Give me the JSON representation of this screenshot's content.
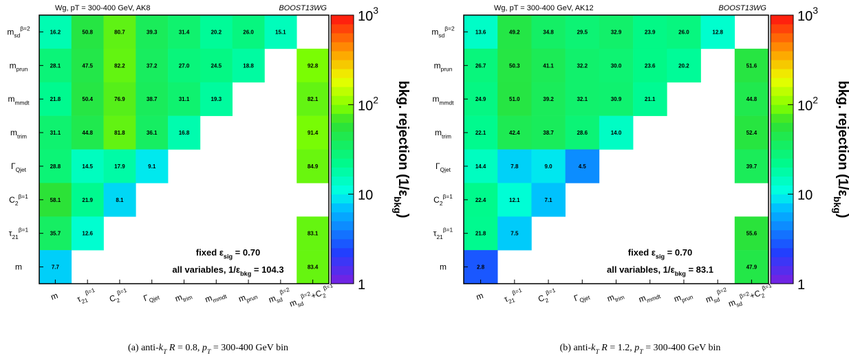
{
  "chart_data": [
    {
      "type": "heatmap",
      "title": "Wg, pT = 300-400 GeV, AK8",
      "tag": "BOOST13WG",
      "x_categories": [
        [
          {
            "text": "m"
          }
        ],
        [
          {
            "text": "τ"
          },
          {
            "text": "21",
            "sub": true
          },
          {
            "text": "β=1",
            "sup": true
          }
        ],
        [
          {
            "text": "C"
          },
          {
            "text": "2",
            "sub": true
          },
          {
            "text": "β=1",
            "sup": true
          }
        ],
        [
          {
            "text": "Γ"
          },
          {
            "text": "Qjet",
            "sub": true
          }
        ],
        [
          {
            "text": "m"
          },
          {
            "text": "trim",
            "sub": true
          }
        ],
        [
          {
            "text": "m"
          },
          {
            "text": "mmdt",
            "sub": true
          }
        ],
        [
          {
            "text": "m"
          },
          {
            "text": "prun",
            "sub": true
          }
        ],
        [
          {
            "text": "m"
          },
          {
            "text": "sd",
            "sub": true
          },
          {
            "text": "β=2",
            "sup": true
          }
        ],
        [
          {
            "text": "m"
          },
          {
            "text": "sd",
            "sub": true
          },
          {
            "text": "β=2",
            "sup": true
          },
          {
            "text": "+C"
          },
          {
            "text": "2",
            "sub": true
          },
          {
            "text": "β=1",
            "sup": true
          }
        ]
      ],
      "y_categories": [
        [
          {
            "text": "m"
          },
          {
            "text": "sd",
            "sub": true
          },
          {
            "text": "β=2",
            "sup": true
          }
        ],
        [
          {
            "text": "m"
          },
          {
            "text": "prun",
            "sub": true
          }
        ],
        [
          {
            "text": "m"
          },
          {
            "text": "mmdt",
            "sub": true
          }
        ],
        [
          {
            "text": "m"
          },
          {
            "text": "trim",
            "sub": true
          }
        ],
        [
          {
            "text": "Γ"
          },
          {
            "text": "Qjet",
            "sub": true
          }
        ],
        [
          {
            "text": "C"
          },
          {
            "text": "2",
            "sub": true
          },
          {
            "text": "β=1",
            "sup": true
          }
        ],
        [
          {
            "text": "τ"
          },
          {
            "text": "21",
            "sub": true
          },
          {
            "text": "β=1",
            "sup": true
          }
        ],
        [
          {
            "text": "m"
          }
        ]
      ],
      "values": [
        [
          16.2,
          50.8,
          80.7,
          39.3,
          31.4,
          20.2,
          26.0,
          15.1,
          null
        ],
        [
          28.1,
          47.5,
          82.2,
          37.2,
          27.0,
          24.5,
          18.8,
          null,
          92.8
        ],
        [
          21.8,
          50.4,
          76.9,
          38.7,
          31.1,
          19.3,
          null,
          null,
          82.1
        ],
        [
          31.1,
          44.8,
          81.8,
          36.1,
          16.8,
          null,
          null,
          null,
          91.4
        ],
        [
          28.8,
          14.5,
          17.9,
          9.1,
          null,
          null,
          null,
          null,
          84.9
        ],
        [
          58.1,
          21.9,
          8.1,
          null,
          null,
          null,
          null,
          null,
          null
        ],
        [
          35.7,
          12.6,
          null,
          null,
          null,
          null,
          null,
          null,
          83.1
        ],
        [
          7.7,
          null,
          null,
          null,
          null,
          null,
          null,
          null,
          83.4
        ]
      ],
      "value_labels": [
        [
          "16.2",
          "50.8",
          "80.7",
          "39.3",
          "31.4",
          "20.2",
          "26.0",
          "15.1",
          null
        ],
        [
          "28.1",
          "47.5",
          "82.2",
          "37.2",
          "27.0",
          "24.5",
          "18.8",
          null,
          "92.8"
        ],
        [
          "21.8",
          "50.4",
          "76.9",
          "38.7",
          "31.1",
          "19.3",
          null,
          null,
          "82.1"
        ],
        [
          "31.1",
          "44.8",
          "81.8",
          "36.1",
          "16.8",
          null,
          null,
          null,
          "91.4"
        ],
        [
          "28.8",
          "14.5",
          "17.9",
          "9.1",
          null,
          null,
          null,
          null,
          "84.9"
        ],
        [
          "58.1",
          "21.9",
          "8.1",
          null,
          null,
          null,
          null,
          null,
          null
        ],
        [
          "35.7",
          "12.6",
          null,
          null,
          null,
          null,
          null,
          null,
          "83.1"
        ],
        [
          "7.7",
          null,
          null,
          null,
          null,
          null,
          null,
          null,
          "83.4"
        ]
      ],
      "zlim": [
        1,
        1000
      ],
      "zscale": "log",
      "zticks": [
        1,
        10,
        {
          "value": 100,
          "label": [
            {
              "text": "10"
            },
            {
              "text": "2",
              "sup": true
            }
          ]
        },
        {
          "value": 1000,
          "label": [
            {
              "text": "10"
            },
            {
              "text": "3",
              "sup": true
            }
          ]
        }
      ],
      "colorbar_label": [
        {
          "text": "bkg. rejection (1/ε"
        },
        {
          "text": "bkg",
          "sub": true
        },
        {
          "text": ")"
        }
      ],
      "annotations": [
        [
          {
            "text": "fixed ε"
          },
          {
            "text": "sig",
            "sub": true
          },
          {
            "text": " = 0.70"
          }
        ],
        [
          {
            "text": "all variables, 1/ε"
          },
          {
            "text": "bkg",
            "sub": true
          },
          {
            "text": " = 104.3"
          }
        ]
      ],
      "caption": [
        {
          "text": "(a)  anti-"
        },
        {
          "text": "k",
          "italic": true
        },
        {
          "text": "T",
          "italic": true,
          "sub": true
        },
        {
          "text": " R",
          "italic": true
        },
        {
          "text": " = 0.8, "
        },
        {
          "text": "p",
          "italic": true
        },
        {
          "text": "T",
          "italic": true,
          "sub": true
        },
        {
          "text": " = 300-400 GeV bin"
        }
      ]
    },
    {
      "type": "heatmap",
      "title": "Wg, pT = 300-400 GeV, AK12",
      "tag": "BOOST13WG",
      "x_categories": [
        [
          {
            "text": "m"
          }
        ],
        [
          {
            "text": "τ"
          },
          {
            "text": "21",
            "sub": true
          },
          {
            "text": "β=1",
            "sup": true
          }
        ],
        [
          {
            "text": "C"
          },
          {
            "text": "2",
            "sub": true
          },
          {
            "text": "β=1",
            "sup": true
          }
        ],
        [
          {
            "text": "Γ"
          },
          {
            "text": "Qjet",
            "sub": true
          }
        ],
        [
          {
            "text": "m"
          },
          {
            "text": "trim",
            "sub": true
          }
        ],
        [
          {
            "text": "m"
          },
          {
            "text": "mmdt",
            "sub": true
          }
        ],
        [
          {
            "text": "m"
          },
          {
            "text": "prun",
            "sub": true
          }
        ],
        [
          {
            "text": "m"
          },
          {
            "text": "sd",
            "sub": true
          },
          {
            "text": "β=2",
            "sup": true
          }
        ],
        [
          {
            "text": "m"
          },
          {
            "text": "sd",
            "sub": true
          },
          {
            "text": "β=2",
            "sup": true
          },
          {
            "text": "+C"
          },
          {
            "text": "2",
            "sub": true
          },
          {
            "text": "β=1",
            "sup": true
          }
        ]
      ],
      "y_categories": [
        [
          {
            "text": "m"
          },
          {
            "text": "sd",
            "sub": true
          },
          {
            "text": "β=2",
            "sup": true
          }
        ],
        [
          {
            "text": "m"
          },
          {
            "text": "prun",
            "sub": true
          }
        ],
        [
          {
            "text": "m"
          },
          {
            "text": "mmdt",
            "sub": true
          }
        ],
        [
          {
            "text": "m"
          },
          {
            "text": "trim",
            "sub": true
          }
        ],
        [
          {
            "text": "Γ"
          },
          {
            "text": "Qjet",
            "sub": true
          }
        ],
        [
          {
            "text": "C"
          },
          {
            "text": "2",
            "sub": true
          },
          {
            "text": "β=1",
            "sup": true
          }
        ],
        [
          {
            "text": "τ"
          },
          {
            "text": "21",
            "sub": true
          },
          {
            "text": "β=1",
            "sup": true
          }
        ],
        [
          {
            "text": "m"
          }
        ]
      ],
      "values": [
        [
          13.6,
          49.2,
          34.8,
          29.5,
          32.9,
          23.9,
          26.0,
          12.8,
          null
        ],
        [
          26.7,
          50.3,
          41.1,
          32.2,
          30.0,
          23.6,
          20.2,
          null,
          51.6
        ],
        [
          24.9,
          51.0,
          39.2,
          32.1,
          30.9,
          21.1,
          null,
          null,
          44.8
        ],
        [
          22.1,
          42.4,
          38.7,
          28.6,
          14.0,
          null,
          null,
          null,
          52.4
        ],
        [
          14.4,
          7.8,
          9.0,
          4.5,
          null,
          null,
          null,
          null,
          39.7
        ],
        [
          22.4,
          12.1,
          7.1,
          null,
          null,
          null,
          null,
          null,
          null
        ],
        [
          21.8,
          7.5,
          null,
          null,
          null,
          null,
          null,
          null,
          55.6
        ],
        [
          2.8,
          null,
          null,
          null,
          null,
          null,
          null,
          null,
          47.9
        ]
      ],
      "value_labels": [
        [
          "13.6",
          "49.2",
          "34.8",
          "29.5",
          "32.9",
          "23.9",
          "26.0",
          "12.8",
          null
        ],
        [
          "26.7",
          "50.3",
          "41.1",
          "32.2",
          "30.0",
          "23.6",
          "20.2",
          null,
          "51.6"
        ],
        [
          "24.9",
          "51.0",
          "39.2",
          "32.1",
          "30.9",
          "21.1",
          null,
          null,
          "44.8"
        ],
        [
          "22.1",
          "42.4",
          "38.7",
          "28.6",
          "14.0",
          null,
          null,
          null,
          "52.4"
        ],
        [
          "14.4",
          "7.8",
          "9.0",
          "4.5",
          null,
          null,
          null,
          null,
          "39.7"
        ],
        [
          "22.4",
          "12.1",
          "7.1",
          null,
          null,
          null,
          null,
          null,
          null
        ],
        [
          "21.8",
          "7.5",
          null,
          null,
          null,
          null,
          null,
          null,
          "55.6"
        ],
        [
          "2.8",
          null,
          null,
          null,
          null,
          null,
          null,
          null,
          "47.9"
        ]
      ],
      "zlim": [
        1,
        1000
      ],
      "zscale": "log",
      "zticks": [
        1,
        10,
        {
          "value": 100,
          "label": [
            {
              "text": "10"
            },
            {
              "text": "2",
              "sup": true
            }
          ]
        },
        {
          "value": 1000,
          "label": [
            {
              "text": "10"
            },
            {
              "text": "3",
              "sup": true
            }
          ]
        }
      ],
      "colorbar_label": [
        {
          "text": "bkg. rejection (1/ε"
        },
        {
          "text": "bkg",
          "sub": true
        },
        {
          "text": ")"
        }
      ],
      "annotations": [
        [
          {
            "text": "fixed ε"
          },
          {
            "text": "sig",
            "sub": true
          },
          {
            "text": " = 0.70"
          }
        ],
        [
          {
            "text": "all variables, 1/ε"
          },
          {
            "text": "bkg",
            "sub": true
          },
          {
            "text": " = 83.1"
          }
        ]
      ],
      "caption": [
        {
          "text": "(b)  anti-"
        },
        {
          "text": "k",
          "italic": true
        },
        {
          "text": "T",
          "italic": true,
          "sub": true
        },
        {
          "text": " R",
          "italic": true
        },
        {
          "text": " = 1.2, "
        },
        {
          "text": "p",
          "italic": true
        },
        {
          "text": "T",
          "italic": true,
          "sub": true
        },
        {
          "text": " = 300-400 GeV bin"
        }
      ]
    }
  ]
}
